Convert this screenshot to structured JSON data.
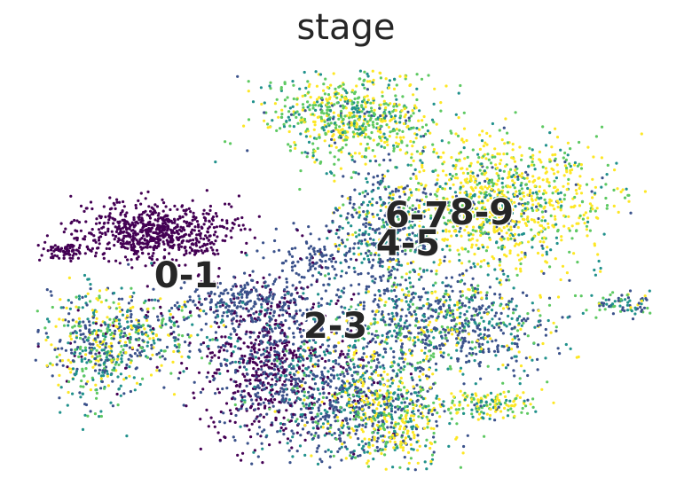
{
  "chart_data": {
    "type": "scatter",
    "title": "stage",
    "xlabel": "",
    "ylabel": "",
    "grid": false,
    "legend": "on data",
    "palette": {
      "0-1": "#440154",
      "2-3": "#3b528b",
      "4-5": "#21918c",
      "6-7": "#5ec962",
      "8-9": "#fde725"
    },
    "categories": [
      "0-1",
      "2-3",
      "4-5",
      "6-7",
      "8-9"
    ],
    "cluster_labels": [
      "0-1",
      "2-3",
      "4-5",
      "6-7",
      "8-9"
    ],
    "note_values": "UMAP embedding point cloud colored by stage; individual coordinates not readable"
  }
}
